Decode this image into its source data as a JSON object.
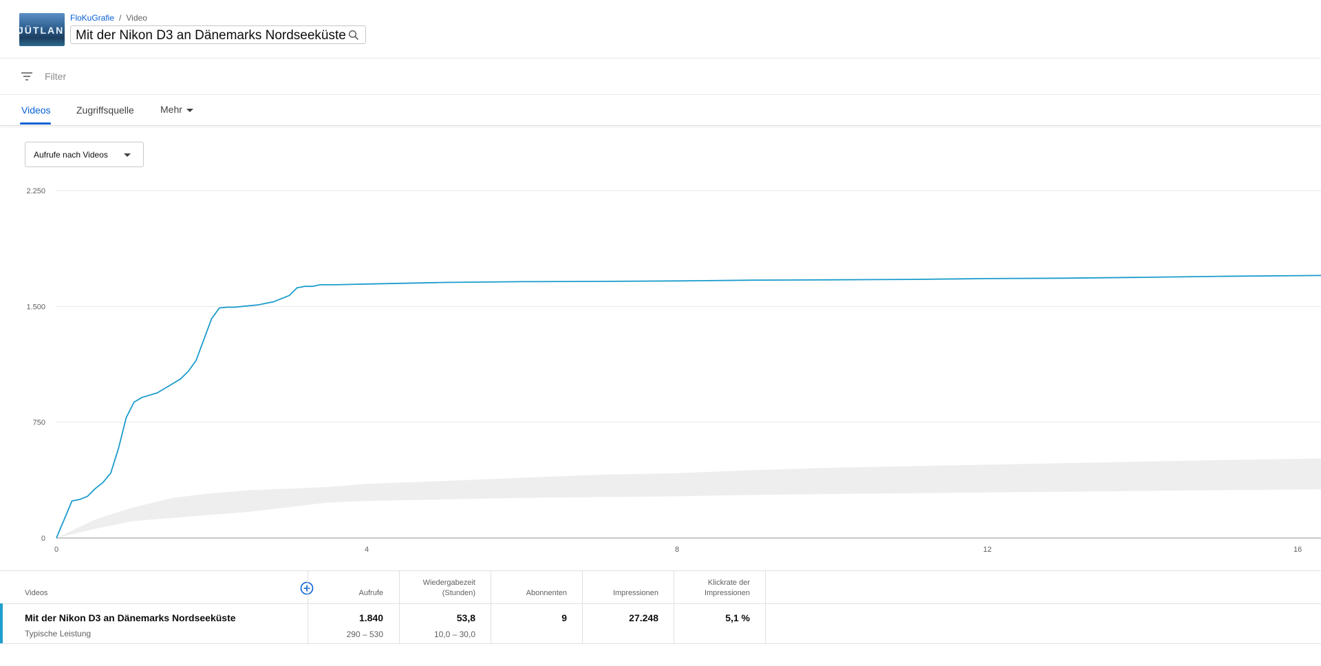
{
  "header": {
    "breadcrumb_channel": "FloKuGrafie",
    "breadcrumb_sep": "/",
    "breadcrumb_section": "Video",
    "video_title": "Mit der Nikon D3 an Dänemarks Nordseeküste",
    "thumbnail_text": "JÜTLAND",
    "icons": {
      "search": "search-icon",
      "filter": "filter-icon",
      "add": "add-circle-icon"
    }
  },
  "filter": {
    "placeholder": "Filter"
  },
  "tabs": [
    {
      "label": "Videos",
      "active": true
    },
    {
      "label": "Zugriffsquelle",
      "active": false
    },
    {
      "label": "Mehr",
      "active": false
    }
  ],
  "metric_select": {
    "label": "Aufrufe nach Videos"
  },
  "chart_data": {
    "type": "line",
    "xlim": [
      0,
      16.3
    ],
    "ylim": [
      0,
      2250
    ],
    "x_ticks": [
      0,
      4,
      8,
      12,
      16
    ],
    "x_tick_labels": [
      "0",
      "4",
      "8",
      "12",
      "16"
    ],
    "y_ticks": [
      0,
      750,
      1500,
      2250
    ],
    "y_tick_labels": [
      "0",
      "750",
      "1.500",
      "2.250"
    ],
    "grid": true,
    "colors": {
      "line": "#1a9bcc",
      "band": "#eeeeee",
      "grid": "#e6e6e6",
      "axis": "#909090"
    },
    "series": [
      {
        "values_x": [
          0,
          0.05,
          0.1,
          0.2,
          0.3,
          0.4,
          0.5,
          0.6,
          0.7,
          0.8,
          0.9,
          1.0,
          1.1,
          1.3,
          1.5,
          1.6,
          1.7,
          1.8,
          2.0,
          2.1,
          2.2,
          2.3,
          2.4,
          2.6,
          2.8,
          3.0,
          3.1,
          3.2,
          3.3,
          3.4,
          3.6,
          4.0,
          4.5,
          5.0,
          6.0,
          7.0,
          8.0,
          9.0,
          10.0,
          11.0,
          12.0,
          13.0,
          14.0,
          15.0,
          16.3
        ],
        "values_y": [
          0,
          60,
          120,
          240,
          250,
          270,
          320,
          360,
          420,
          580,
          780,
          880,
          910,
          940,
          1000,
          1030,
          1080,
          1150,
          1420,
          1490,
          1495,
          1495,
          1500,
          1510,
          1530,
          1570,
          1620,
          1630,
          1630,
          1640,
          1640,
          1645,
          1650,
          1655,
          1660,
          1662,
          1665,
          1670,
          1672,
          1675,
          1680,
          1683,
          1688,
          1695,
          1700
        ]
      }
    ],
    "band": {
      "x": [
        0,
        0.5,
        1.0,
        1.5,
        2.0,
        2.5,
        3.0,
        3.5,
        4.0,
        5.0,
        6.0,
        7.0,
        8.0,
        9.0,
        10.0,
        11.0,
        12.0,
        13.0,
        14.0,
        15.0,
        16.3
      ],
      "low": [
        0,
        60,
        110,
        130,
        150,
        170,
        200,
        230,
        240,
        250,
        260,
        265,
        270,
        280,
        285,
        290,
        295,
        300,
        305,
        310,
        315
      ],
      "high": [
        0,
        120,
        200,
        260,
        290,
        310,
        320,
        330,
        350,
        370,
        390,
        410,
        420,
        440,
        455,
        465,
        475,
        485,
        495,
        505,
        515
      ]
    }
  },
  "table": {
    "headers": {
      "videos": "Videos",
      "views": "Aufrufe",
      "watch_time_line1": "Wiedergabezeit",
      "watch_time_line2": "(Stunden)",
      "subscribers": "Abonnenten",
      "impressions": "Impressionen",
      "ctr_line1": "Klickrate der",
      "ctr_line2": "Impressionen"
    },
    "row": {
      "title": "Mit der Nikon D3 an Dänemarks Nordseeküste",
      "subtitle": "Typische Leistung",
      "views": "1.840",
      "views_range": "290 – 530",
      "watch_time": "53,8",
      "watch_time_range": "10,0 – 30,0",
      "subscribers": "9",
      "impressions": "27.248",
      "ctr": "5,1 %"
    }
  }
}
